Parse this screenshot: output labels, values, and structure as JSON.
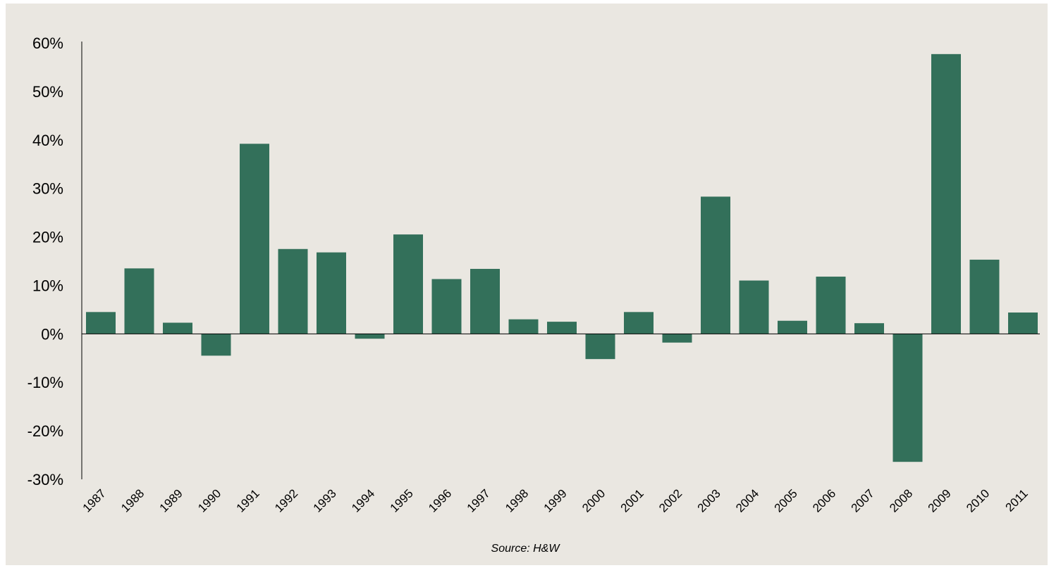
{
  "chart_data": {
    "type": "bar",
    "title": "",
    "xlabel": "",
    "ylabel": "",
    "categories": [
      "1987",
      "1988",
      "1989",
      "1990",
      "1991",
      "1992",
      "1993",
      "1994",
      "1995",
      "1996",
      "1997",
      "1998",
      "1999",
      "2000",
      "2001",
      "2002",
      "2003",
      "2004",
      "2005",
      "2006",
      "2007",
      "2008",
      "2009",
      "2010",
      "2011"
    ],
    "values": [
      4.5,
      13.5,
      2.3,
      -4.5,
      39.2,
      17.5,
      16.8,
      -1.0,
      20.5,
      11.3,
      13.4,
      3.0,
      2.5,
      -5.2,
      4.5,
      -1.8,
      28.3,
      11.0,
      2.7,
      11.8,
      2.2,
      -26.4,
      57.7,
      15.3,
      4.4
    ],
    "ylim": [
      -30,
      60
    ],
    "yticks": [
      -30,
      -20,
      -10,
      0,
      10,
      20,
      30,
      40,
      50,
      60
    ],
    "ytick_labels": [
      "-30%",
      "-20%",
      "-10%",
      "0%",
      "10%",
      "20%",
      "30%",
      "40%",
      "50%",
      "60%"
    ],
    "grid": false,
    "legend": "none",
    "bar_color": "#33705a",
    "background_color": "#eae7e1",
    "source": "Source: H&W"
  }
}
